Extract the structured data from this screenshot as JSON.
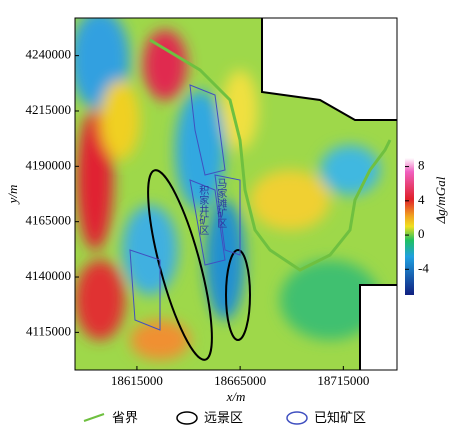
{
  "chart_data": {
    "type": "heatmap",
    "xlabel": "x/m",
    "ylabel": "y/m",
    "xlim": [
      18585000,
      18741000
    ],
    "xticks": [
      18615000,
      18665000,
      18715000
    ],
    "ylim": [
      4098000,
      4257000
    ],
    "yticks": [
      4115000,
      4140000,
      4165000,
      4190000,
      4215000,
      4240000
    ],
    "colorbar": {
      "label": "Δg/mGal",
      "lim": [
        -7,
        9
      ],
      "ticks": [
        8,
        4,
        0,
        -4
      ]
    },
    "legend": [
      "省界",
      "远景区",
      "已知矿区"
    ],
    "annotations": [
      "马家滩矿区",
      "积家井矿区"
    ]
  }
}
